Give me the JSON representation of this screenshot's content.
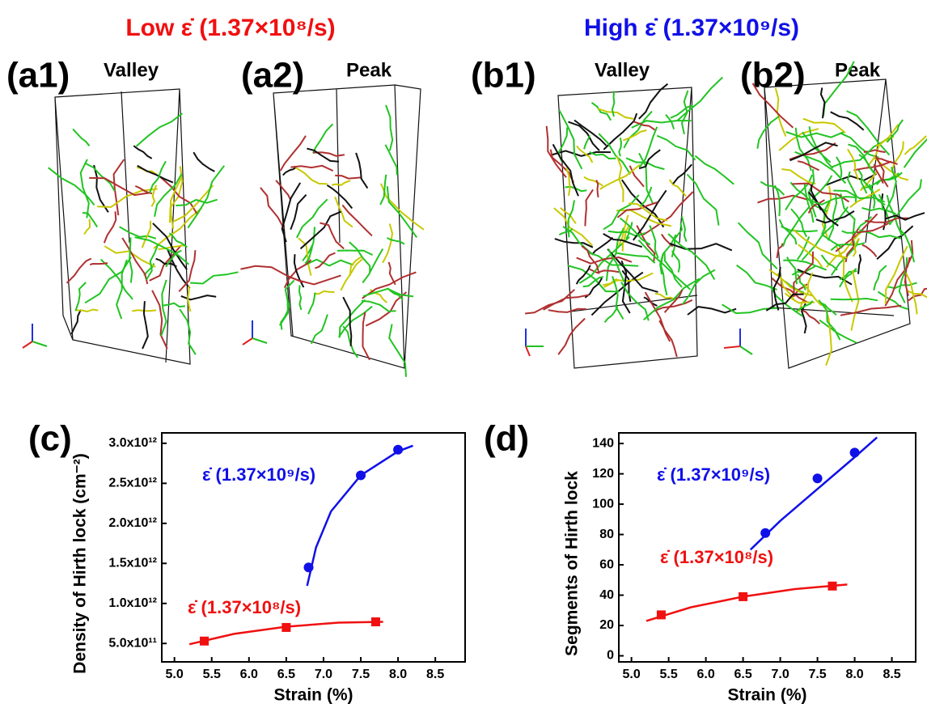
{
  "figure": {
    "low_rate_title": "Low ε̇ (1.37×10⁸/s)",
    "high_rate_title": "High ε̇ (1.37×10⁹/s)",
    "panels": [
      {
        "label": "(a1)",
        "state": "Valley"
      },
      {
        "label": "(a2)",
        "state": "Peak"
      },
      {
        "label": "(b1)",
        "state": "Valley"
      },
      {
        "label": "(b2)",
        "state": "Peak"
      }
    ]
  },
  "chart_data": [
    {
      "type": "scatter",
      "label": "(c)",
      "xlabel": "Strain (%)",
      "ylabel": "Density of Hirth lock (cm⁻²)",
      "xlim": [
        4.83,
        8.9
      ],
      "xticks": [
        {
          "value": 5,
          "label": "5.0"
        },
        5.5,
        {
          "value": 6,
          "label": "6.0"
        },
        6.5,
        {
          "value": 7,
          "label": "7.0"
        },
        7.5,
        {
          "value": 8,
          "label": "8.0"
        },
        8.5
      ],
      "ylim": [
        270000000000,
        3130000000000
      ],
      "yticks": [
        {
          "value": 500000000000,
          "label": "5.0x10¹¹"
        },
        {
          "value": 1000000000000,
          "label": "1.0x10¹²"
        },
        {
          "value": 1500000000000,
          "label": "1.5x10¹²"
        },
        {
          "value": 2000000000000,
          "label": "2.0x10¹²"
        },
        {
          "value": 2500000000000,
          "label": "2.5x10¹²"
        },
        {
          "value": 3000000000000,
          "label": "3.0x10¹²"
        }
      ],
      "series": [
        {
          "name": "ε̇ (1.37×10⁹/s)",
          "color": "#1010e8",
          "marker": "circle",
          "x": [
            6.8,
            7.5,
            8.0
          ],
          "values": [
            1450000000000,
            2600000000000,
            2920000000000
          ],
          "fit_x": [
            6.78,
            6.9,
            7.1,
            7.5,
            8.0,
            8.2
          ],
          "fit_values": [
            1220000000000,
            1700000000000,
            2150000000000,
            2600000000000,
            2900000000000,
            2970000000000
          ]
        },
        {
          "name": "ε̇ (1.37×10⁸/s)",
          "color": "#f01010",
          "marker": "square",
          "x": [
            5.4,
            6.5,
            7.7
          ],
          "values": [
            530000000000,
            700000000000,
            770000000000
          ],
          "fit_x": [
            5.2,
            5.8,
            6.5,
            7.2,
            7.8
          ],
          "fit_values": [
            490000000000,
            620000000000,
            710000000000,
            760000000000,
            770000000000
          ]
        }
      ]
    },
    {
      "type": "scatter",
      "label": "(d)",
      "xlabel": "Strain (%)",
      "ylabel": "Segments of Hirth lock",
      "xlim": [
        4.83,
        8.82
      ],
      "xticks": [
        {
          "value": 5,
          "label": "5.0"
        },
        5.5,
        {
          "value": 6,
          "label": "6.0"
        },
        6.5,
        {
          "value": 7,
          "label": "7.0"
        },
        7.5,
        {
          "value": 8,
          "label": "8.0"
        },
        8.5
      ],
      "ylim": [
        -4,
        147
      ],
      "yticks": [
        0,
        20,
        40,
        60,
        80,
        100,
        120,
        140
      ],
      "series": [
        {
          "name": "ε̇ (1.37×10⁹/s)",
          "color": "#1010e8",
          "marker": "circle",
          "x": [
            6.8,
            7.5,
            8.0
          ],
          "values": [
            81,
            117,
            134
          ],
          "fit_x": [
            6.6,
            7.0,
            7.5,
            8.0,
            8.3
          ],
          "fit_values": [
            70,
            89,
            110,
            131,
            144
          ]
        },
        {
          "name": "ε̇ (1.37×10⁸/s)",
          "color": "#f01010",
          "marker": "square",
          "x": [
            5.4,
            6.5,
            7.7
          ],
          "values": [
            27,
            39,
            46
          ],
          "fit_x": [
            5.2,
            5.8,
            6.5,
            7.2,
            7.9
          ],
          "fit_values": [
            23,
            32,
            39,
            44,
            47
          ]
        }
      ]
    }
  ]
}
